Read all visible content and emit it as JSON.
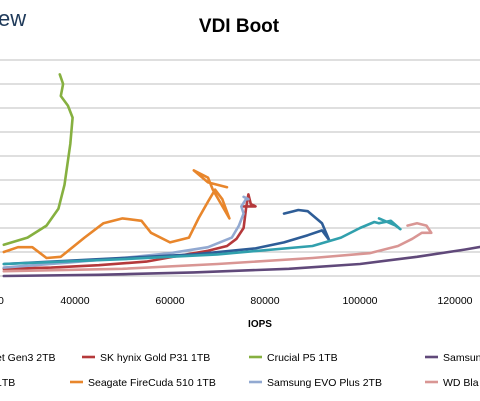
{
  "brand_partial": "ew",
  "chart_data": {
    "type": "line",
    "title": "VDI Boot",
    "xlabel": "IOPS",
    "ylabel": "",
    "x_ticks": [
      40000,
      60000,
      80000,
      100000,
      120000
    ],
    "x_tick_labels": [
      "40000",
      "60000",
      "80000",
      "100000",
      "120000"
    ],
    "xlim": [
      25000,
      128000
    ],
    "grid": true,
    "legend_position": "bottom",
    "series": [
      {
        "name": "SK hynix Gold P31 1TB",
        "color": "#b5393b",
        "x": [
          25000,
          35000,
          45000,
          55000,
          62000,
          68000,
          72000,
          74000,
          75500,
          76000,
          76500,
          77000,
          78000,
          75500
        ],
        "y": [
          0.3,
          0.35,
          0.45,
          0.6,
          0.85,
          1.05,
          1.25,
          1.55,
          2.0,
          2.8,
          3.4,
          3.0,
          2.9,
          2.9
        ]
      },
      {
        "name": "Crucial P5 1TB",
        "color": "#86b040",
        "x": [
          25000,
          30000,
          34000,
          36500,
          37800,
          39000,
          39500,
          38500,
          37000,
          37500,
          36800
        ],
        "y": [
          1.3,
          1.6,
          2.1,
          2.8,
          3.8,
          5.5,
          6.6,
          7.1,
          7.5,
          8.0,
          8.4
        ]
      },
      {
        "name": "Samsung",
        "color": "#60497a",
        "x": [
          25000,
          45000,
          65000,
          85000,
          100000,
          112000,
          122000,
          128000
        ],
        "y": [
          0.0,
          0.05,
          0.15,
          0.3,
          0.5,
          0.8,
          1.1,
          1.3
        ]
      },
      {
        "name": "Seagate FireCuda 510 1TB",
        "color": "#e8862c",
        "x": [
          25000,
          28000,
          31000,
          34000,
          37000,
          42000,
          46000,
          50000,
          54000,
          56000,
          60000,
          64000,
          66000,
          68000,
          69500,
          71000,
          72500,
          69000,
          68000,
          65000,
          68000,
          72000
        ],
        "y": [
          1.0,
          1.2,
          1.2,
          0.75,
          0.8,
          1.6,
          2.2,
          2.4,
          2.3,
          1.8,
          1.4,
          1.6,
          2.4,
          3.1,
          3.6,
          3.2,
          2.4,
          3.6,
          4.1,
          4.4,
          3.9,
          3.7
        ]
      },
      {
        "name": "Samsung EVO Plus 2TB",
        "color": "#92a9d1",
        "x": [
          25000,
          38000,
          50000,
          60000,
          68000,
          73000,
          74500,
          75500,
          75000,
          76000,
          76500,
          75500
        ],
        "y": [
          0.35,
          0.55,
          0.75,
          0.95,
          1.2,
          1.6,
          2.1,
          2.6,
          2.9,
          3.2,
          3.2,
          3.3
        ]
      },
      {
        "name": "WD Bla",
        "color": "#d99694",
        "x": [
          25000,
          50000,
          70000,
          90000,
          102000,
          108000,
          111000,
          113000,
          115000,
          114000,
          112000,
          110000
        ],
        "y": [
          0.2,
          0.3,
          0.5,
          0.75,
          0.95,
          1.25,
          1.55,
          1.8,
          1.8,
          2.1,
          2.2,
          2.1
        ]
      },
      {
        "name": "",
        "color": "#2e5d97",
        "x": [
          25000,
          45000,
          65000,
          78000,
          84000,
          89000,
          92000,
          93500,
          92000,
          89000,
          87000,
          86000,
          84000
        ],
        "y": [
          0.5,
          0.7,
          0.9,
          1.15,
          1.4,
          1.7,
          1.9,
          1.5,
          2.2,
          2.7,
          2.75,
          2.7,
          2.6
        ]
      },
      {
        "name": "",
        "color": "#31a0ad",
        "x": [
          25000,
          50000,
          70000,
          90000,
          96000,
          100000,
          103000,
          104000,
          106500,
          108500,
          107500,
          104000
        ],
        "y": [
          0.5,
          0.7,
          0.9,
          1.25,
          1.6,
          2.0,
          2.25,
          2.2,
          2.3,
          1.95,
          2.1,
          2.4
        ]
      }
    ]
  },
  "legend": {
    "row1": [
      {
        "label": "et Gen3 2TB",
        "color": "#2e5d97"
      },
      {
        "label": "SK hynix Gold P31 1TB",
        "color": "#b5393b"
      },
      {
        "label": "Crucial P5 1TB",
        "color": "#86b040"
      },
      {
        "label": "Samsun",
        "color": "#60497a"
      }
    ],
    "row2": [
      {
        "label": "1TB",
        "color": "#31a0ad"
      },
      {
        "label": "Seagate FireCuda 510 1TB",
        "color": "#e8862c"
      },
      {
        "label": "Samsung EVO Plus 2TB",
        "color": "#92a9d1"
      },
      {
        "label": "WD Bla",
        "color": "#d99694"
      }
    ]
  }
}
